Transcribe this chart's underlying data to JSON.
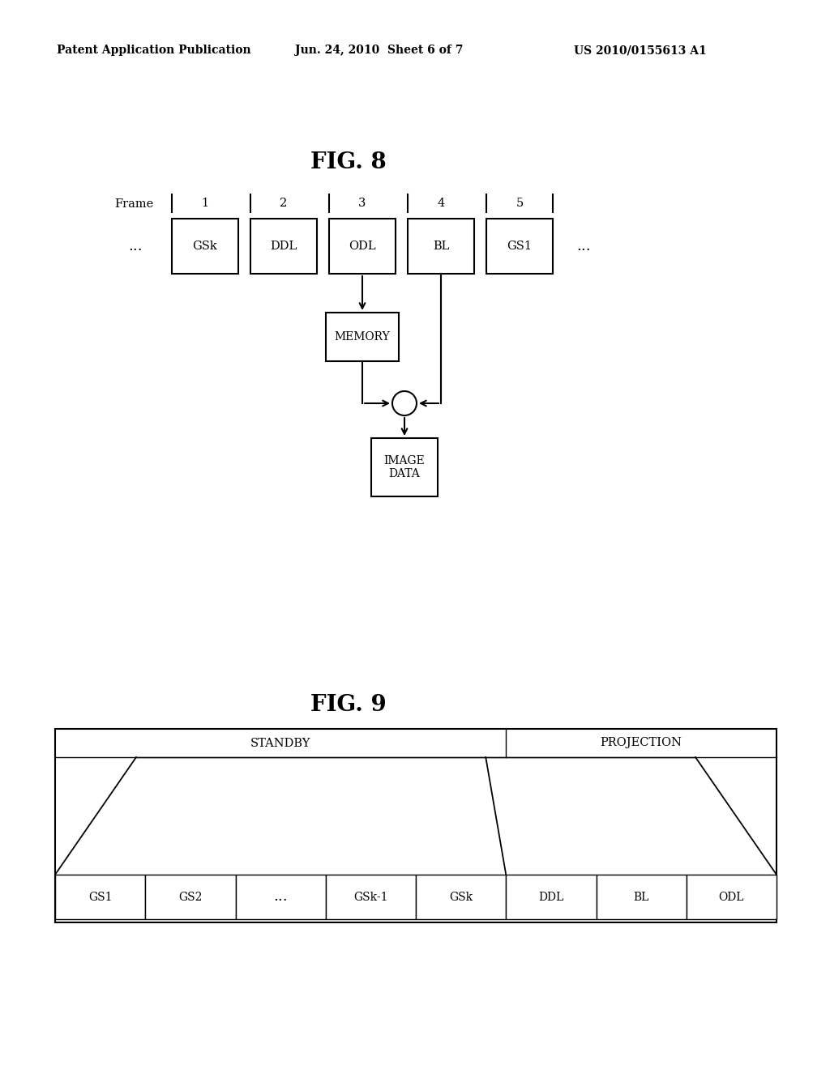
{
  "bg_color": "#ffffff",
  "header_left": "Patent Application Publication",
  "header_center": "Jun. 24, 2010  Sheet 6 of 7",
  "header_right": "US 2010/0155613 A1",
  "fig8_title": "FIG. 8",
  "fig9_title": "FIG. 9",
  "fig8": {
    "frame_label": "Frame",
    "frame_numbers": [
      "1",
      "2",
      "3",
      "4",
      "5"
    ],
    "boxes": [
      "GSk",
      "DDL",
      "ODL",
      "BL",
      "GS1"
    ],
    "dots_left": "...",
    "dots_right": "...",
    "memory_label": "MEMORY",
    "subtract_symbol": "-",
    "image_data_label": "IMAGE\nDATA"
  },
  "fig9": {
    "top_sections": [
      "STANDBY",
      "PROJECTION"
    ],
    "bottom_boxes": [
      "GS1",
      "GS2",
      "...",
      "GSk-1",
      "GSk",
      "DDL",
      "BL",
      "ODL"
    ],
    "standby_count": 5,
    "proj_count": 3
  }
}
